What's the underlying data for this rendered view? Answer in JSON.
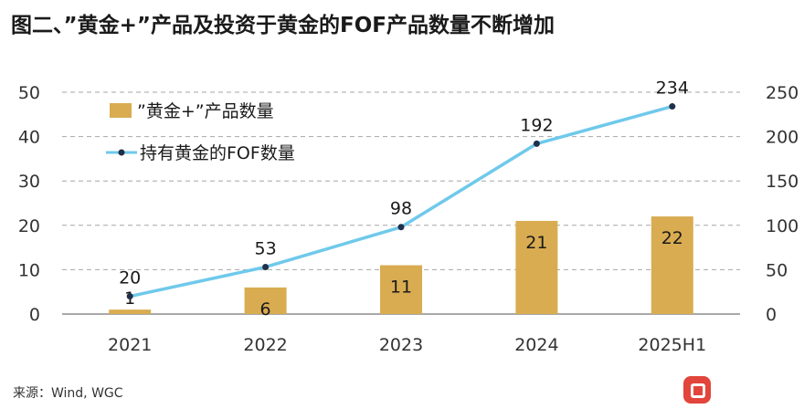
{
  "title": "图二、”黄金+”产品及投资于黄金的FOF产品数量不断增加",
  "source": "来源：Wind, WGC",
  "watermark": {
    "icon": "brand-logo-icon"
  },
  "colors": {
    "bar": "#D9AC51",
    "line": "#6FC9EB",
    "marker": "#1F3049",
    "grid": "#A6A6A6",
    "axis": "#8C8C8C"
  },
  "chart_data": {
    "type": "bar+line",
    "title": "图二、”黄金+”产品及投资于黄金的FOF产品数量不断增加",
    "categories": [
      "2021",
      "2022",
      "2023",
      "2024",
      "2025H1"
    ],
    "series": [
      {
        "name": "”黄金+”产品数量",
        "type": "bar",
        "axis": "left",
        "values": [
          1,
          6,
          11,
          21,
          22
        ]
      },
      {
        "name": "持有黄金的FOF数量",
        "type": "line",
        "axis": "right",
        "values": [
          20,
          53,
          98,
          192,
          234
        ]
      }
    ],
    "left_axis": {
      "min": 0,
      "max": 50,
      "ticks": [
        "0",
        "10",
        "20",
        "30",
        "40",
        "50"
      ]
    },
    "right_axis": {
      "min": 0,
      "max": 250,
      "ticks": [
        "0",
        "50",
        "100",
        "150",
        "200",
        "250"
      ]
    },
    "grid": "horizontal dashed",
    "legend_position": "top-left"
  }
}
